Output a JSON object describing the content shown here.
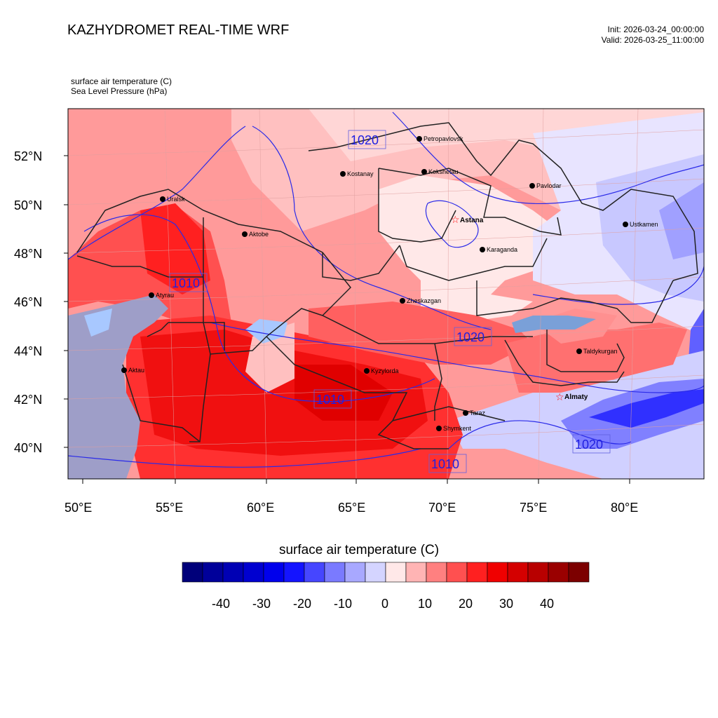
{
  "header": {
    "title": "KAZHYDROMET REAL-TIME WRF",
    "init": "Init: 2026-03-24_00:00:00",
    "valid": "Valid: 2026-03-25_11:00:00"
  },
  "fields": {
    "line1": "surface air temperature   (C)",
    "line2": "Sea Level Pressure   (hPa)"
  },
  "map": {
    "lat_labels": [
      "52°N",
      "50°N",
      "48°N",
      "46°N",
      "44°N",
      "42°N",
      "40°N"
    ],
    "lon_labels": [
      "50°E",
      "55°E",
      "60°E",
      "65°E",
      "70°E",
      "75°E",
      "80°E"
    ],
    "cities": [
      {
        "name": "Petropavlovsk",
        "capital": false
      },
      {
        "name": "Kostanay",
        "capital": false
      },
      {
        "name": "Kokshetau",
        "capital": false
      },
      {
        "name": "Pavlodar",
        "capital": false
      },
      {
        "name": "Uralsk",
        "capital": false
      },
      {
        "name": "Astana",
        "capital": true
      },
      {
        "name": "Ustkamen",
        "capital": false
      },
      {
        "name": "Aktobe",
        "capital": false
      },
      {
        "name": "Karaganda",
        "capital": false
      },
      {
        "name": "Atyrau",
        "capital": false
      },
      {
        "name": "Zheskazgan",
        "capital": false
      },
      {
        "name": "Taldykurgan",
        "capital": false
      },
      {
        "name": "Aktau",
        "capital": false
      },
      {
        "name": "Kyzylorda",
        "capital": false
      },
      {
        "name": "Almaty",
        "capital": true
      },
      {
        "name": "Taraz",
        "capital": false
      },
      {
        "name": "Shymkent",
        "capital": false
      }
    ],
    "isobars": [
      "1020",
      "1010",
      "1020",
      "1010",
      "1020",
      "1010"
    ]
  },
  "colorbar": {
    "title": "surface air temperature  (C)",
    "labels": [
      "-40",
      "-30",
      "-20",
      "-10",
      "0",
      "10",
      "20",
      "30",
      "40"
    ],
    "colors": [
      "#00007a",
      "#00009a",
      "#0000b4",
      "#0000d0",
      "#0000ec",
      "#1414ff",
      "#4646ff",
      "#7a7aff",
      "#a8a8ff",
      "#d4d4ff",
      "#ffe8e8",
      "#ffb4b4",
      "#ff8080",
      "#ff5050",
      "#ff2020",
      "#f00000",
      "#d40000",
      "#b80000",
      "#9a0000",
      "#7c0000"
    ]
  }
}
